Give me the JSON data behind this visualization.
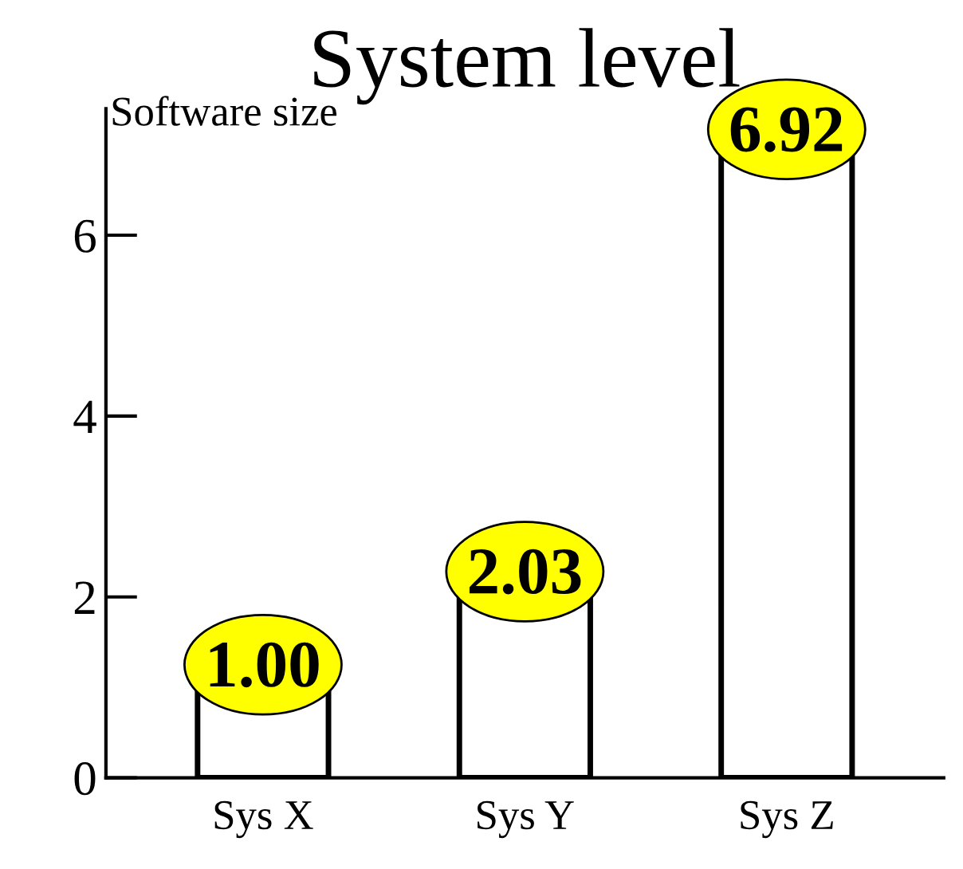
{
  "chart_data": {
    "type": "bar",
    "title": "System level",
    "ylabel": "Software size",
    "categories": [
      "Sys X",
      "Sys Y",
      "Sys Z"
    ],
    "values": [
      1.0,
      2.03,
      6.92
    ],
    "color": "#ffffff",
    "ylim": [
      0,
      7.4
    ],
    "yticks": [
      0,
      2,
      4,
      6
    ],
    "value_labels": [
      "1.00",
      "2.03",
      "6.92"
    ],
    "data_labels": true,
    "grid": false,
    "legend": false
  }
}
